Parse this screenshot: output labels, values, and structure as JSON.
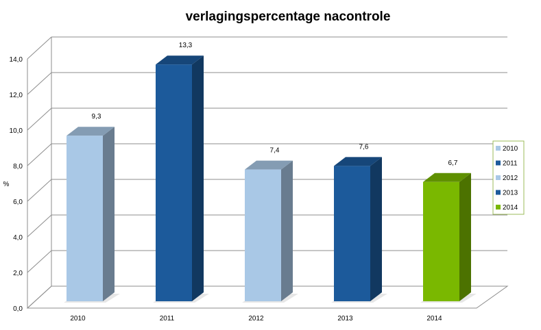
{
  "chart_data": {
    "type": "bar",
    "title": "verlagingspercentage nacontrole",
    "xlabel": "",
    "ylabel": "%",
    "categories": [
      "2010",
      "2011",
      "2012",
      "2013",
      "2014"
    ],
    "values": [
      9.3,
      13.3,
      7.4,
      7.6,
      6.7
    ],
    "data_labels": [
      "9,3",
      "13,3",
      "7,4",
      "7,6",
      "6,7"
    ],
    "ylim": [
      0,
      14
    ],
    "yticks": [
      0,
      2,
      4,
      6,
      8,
      10,
      12,
      14
    ],
    "ytick_labels": [
      "0,0",
      "2,0",
      "4,0",
      "6,0",
      "8,0",
      "10,0",
      "12,0",
      "14,0"
    ],
    "grid": true,
    "three_d": true,
    "legend": {
      "placement": "right",
      "entries": [
        "2010",
        "2011",
        "2012",
        "2013",
        "2014"
      ]
    },
    "colors": {
      "2010": "#a9c8e6",
      "2011": "#1c5a9b",
      "2012": "#a9c8e6",
      "2013": "#1c5a9b",
      "2014": "#7ab800"
    }
  }
}
